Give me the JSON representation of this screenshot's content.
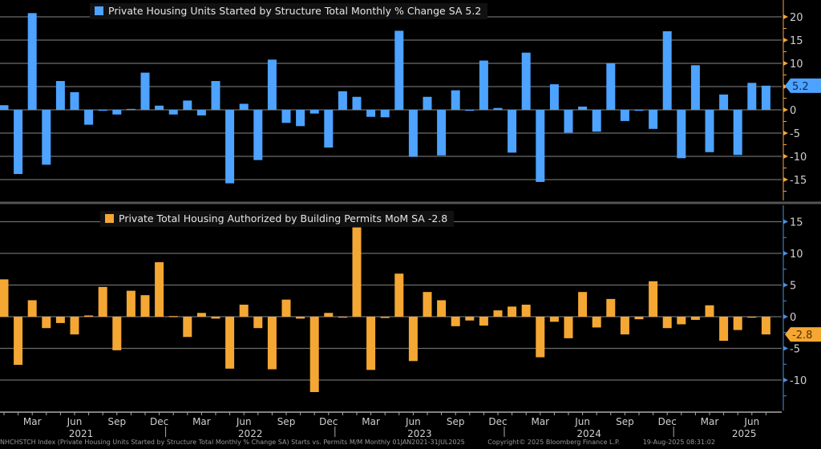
{
  "chart_data": [
    {
      "type": "bar",
      "title": "Private Housing Units Started by Structure Total Monthly % Change SA 5.2",
      "legend": "Private Housing Units Started by Structure Total Monthly % Change SA 5.2",
      "legend_position": "top-center",
      "color": "#4da3ff",
      "last_value_label": "5.2",
      "ylim": [
        -19,
        23
      ],
      "yticks": [
        20,
        15,
        10,
        5,
        0,
        -5,
        -10,
        -15
      ],
      "ytick_labels": [
        "20",
        "15",
        "10",
        "",
        "0",
        "-5",
        "-10",
        "-15"
      ],
      "grid": true,
      "values": [
        1.0,
        -13.8,
        20.8,
        -11.8,
        6.2,
        3.8,
        -3.2,
        0.0,
        -1.0,
        0.2,
        8.0,
        0.9,
        -1.0,
        2.0,
        -1.2,
        6.2,
        -15.8,
        1.3,
        -10.8,
        10.8,
        -2.8,
        -3.5,
        -0.8,
        -8.1,
        4.0,
        2.8,
        -1.5,
        -1.6,
        17.0,
        -10.1,
        2.8,
        -9.8,
        4.2,
        0.0,
        10.6,
        0.4,
        -9.2,
        12.3,
        -15.5,
        5.5,
        -4.9,
        0.7,
        -4.7,
        10.0,
        -2.4,
        -0.2,
        -4.1,
        16.9,
        -10.4,
        9.6,
        -9.1,
        3.3,
        -9.7,
        5.8,
        5.2
      ]
    },
    {
      "type": "bar",
      "title": "Private Total Housing Authorized by Building Permits MoM SA -2.8",
      "legend": "Private Total Housing Authorized by Building Permits MoM SA -2.8",
      "legend_position": "top-center",
      "color": "#f5a733",
      "last_value_label": "-2.8",
      "ylim": [
        -15,
        17
      ],
      "yticks": [
        15,
        10,
        5,
        0,
        -5,
        -10
      ],
      "ytick_labels": [
        "15",
        "10",
        "5",
        "0",
        "-5",
        "-10"
      ],
      "grid": true,
      "values": [
        5.9,
        -7.6,
        2.6,
        -1.8,
        -1.0,
        -2.8,
        0.2,
        4.7,
        -5.3,
        4.1,
        3.4,
        8.6,
        0.1,
        -3.2,
        0.6,
        -0.3,
        -8.2,
        1.9,
        -1.8,
        -8.3,
        2.7,
        -0.3,
        -11.9,
        0.6,
        -0.1,
        14.1,
        -8.4,
        -0.2,
        6.8,
        -7.0,
        3.9,
        2.6,
        -1.5,
        -0.6,
        -1.4,
        1.0,
        1.6,
        1.9,
        -6.4,
        -0.8,
        -3.4,
        3.9,
        -1.7,
        2.8,
        -2.8,
        -0.4,
        5.6,
        -1.8,
        -1.2,
        -0.5,
        1.8,
        -3.8,
        -2.1,
        -0.1,
        -2.8
      ]
    }
  ],
  "x_axis": {
    "start": "Jan 2021",
    "end": "Jul 2025",
    "month_labels": [
      {
        "index": 2,
        "label": "Mar"
      },
      {
        "index": 5,
        "label": "Jun"
      },
      {
        "index": 8,
        "label": "Sep"
      },
      {
        "index": 11,
        "label": "Dec"
      },
      {
        "index": 14,
        "label": "Mar"
      },
      {
        "index": 17,
        "label": "Jun"
      },
      {
        "index": 20,
        "label": "Sep"
      },
      {
        "index": 23,
        "label": "Dec"
      },
      {
        "index": 26,
        "label": "Mar"
      },
      {
        "index": 29,
        "label": "Jun"
      },
      {
        "index": 32,
        "label": "Sep"
      },
      {
        "index": 35,
        "label": "Dec"
      },
      {
        "index": 38,
        "label": "Mar"
      },
      {
        "index": 41,
        "label": "Jun"
      },
      {
        "index": 44,
        "label": "Sep"
      },
      {
        "index": 47,
        "label": "Dec"
      },
      {
        "index": 50,
        "label": "Mar"
      },
      {
        "index": 53,
        "label": "Jun"
      }
    ],
    "year_labels": [
      {
        "index": 5,
        "label": "2021"
      },
      {
        "index": 17,
        "label": "2022"
      },
      {
        "index": 29,
        "label": "2023"
      },
      {
        "index": 41,
        "label": "2024"
      },
      {
        "index": 52,
        "label": "2025"
      }
    ]
  },
  "footer": {
    "source": "NHCHSTCH Index (Private Housing Units Started by Structure Total Monthly % Change SA) Starts vs. Permits M/M Monthly 01JAN2021-31JUL2025",
    "copyright": "Copyright© 2025 Bloomberg Finance L.P.",
    "timestamp": "19-Aug-2025 08:31:02"
  }
}
